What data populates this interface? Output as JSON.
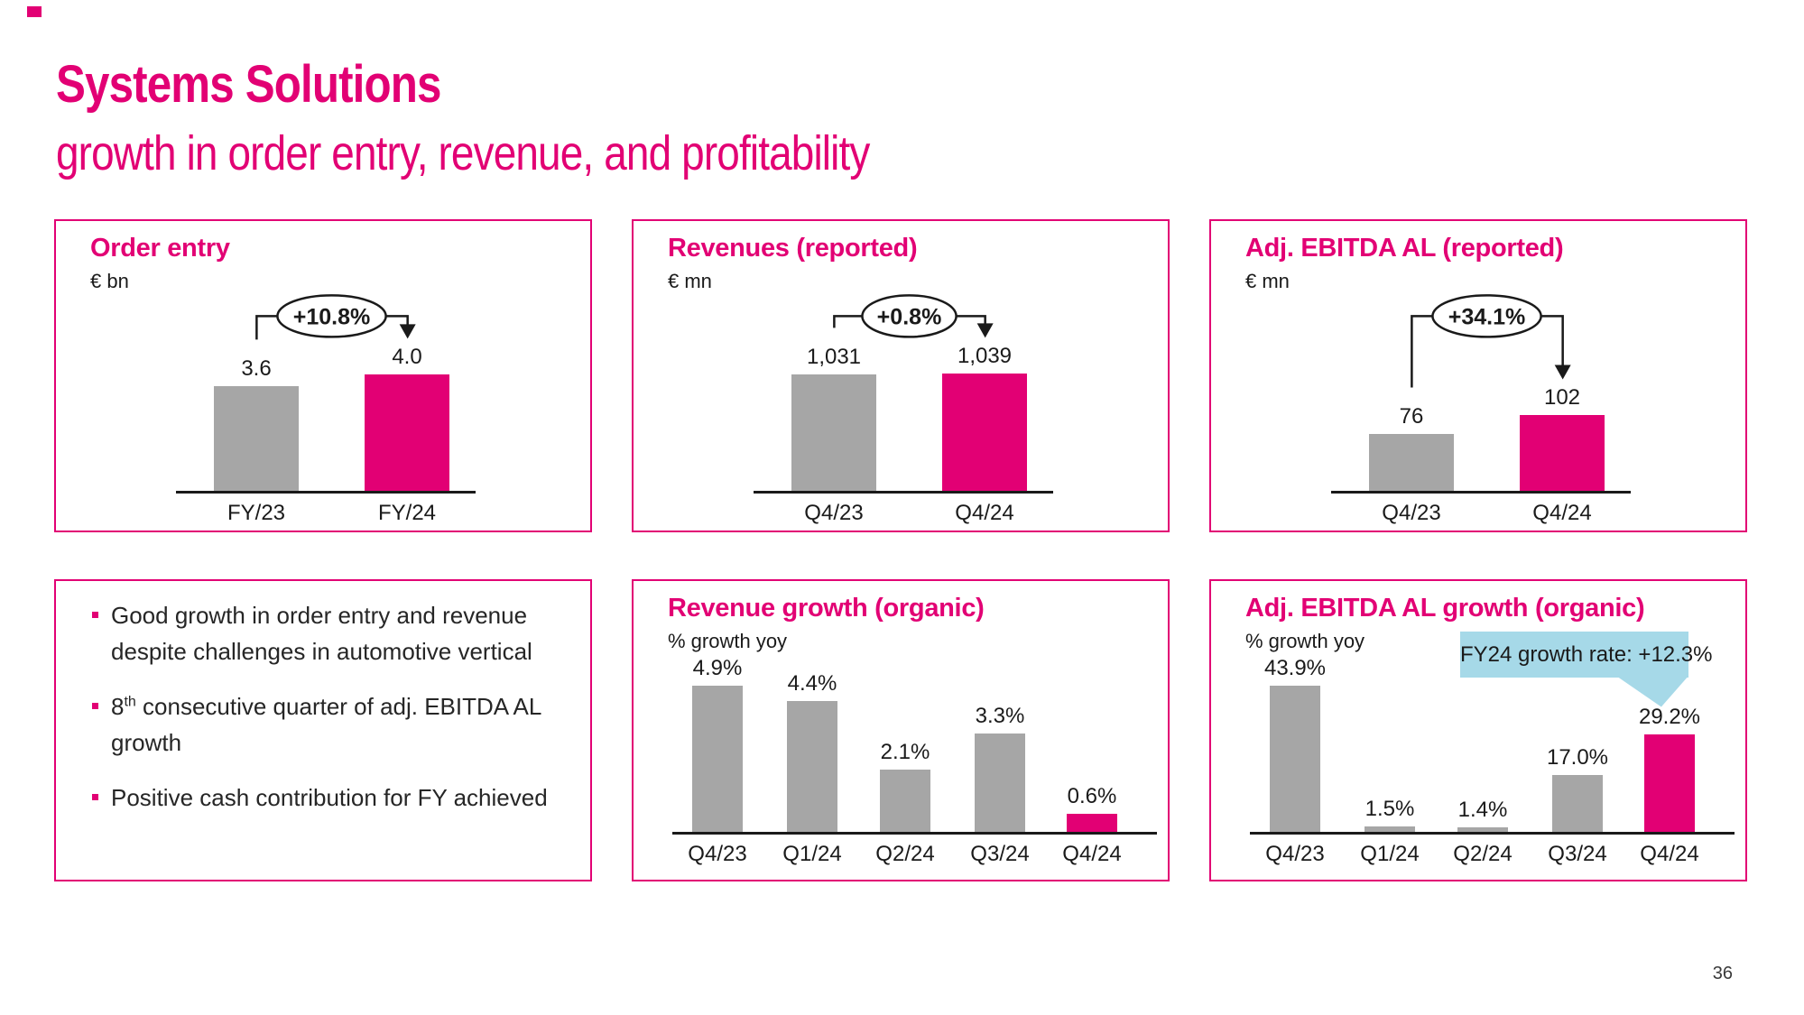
{
  "slide": {
    "title": "Systems Solutions",
    "subtitle": "growth in order entry, revenue, and profitability",
    "page_number": "36"
  },
  "colors": {
    "magenta": "#E20074",
    "gray_bar": "#A6A6A6",
    "callout_blue": "#A6D9E8",
    "axis": "#1A1A1A"
  },
  "bullets": [
    {
      "text": "Good growth in order entry and revenue\ndespite challenges in automotive vertical"
    },
    {
      "prefix": "8",
      "sup": "th",
      "text": " consecutive quarter of adj. EBITDA AL\ngrowth"
    },
    {
      "text": "Positive cash contribution for FY achieved"
    }
  ],
  "chart_data": [
    {
      "id": "order-entry",
      "type": "bar",
      "title": "Order entry",
      "unit": "€ bn",
      "categories": [
        "FY/23",
        "FY/24"
      ],
      "values": [
        3.6,
        4.0
      ],
      "value_labels": [
        "3.6",
        "4.0"
      ],
      "growth_label": "+10.8%",
      "highlight_index": 1,
      "grid": false,
      "legend": "none"
    },
    {
      "id": "revenues-reported",
      "type": "bar",
      "title": "Revenues (reported)",
      "unit": "€ mn",
      "categories": [
        "Q4/23",
        "Q4/24"
      ],
      "values": [
        1031,
        1039
      ],
      "value_labels": [
        "1,031",
        "1,039"
      ],
      "growth_label": "+0.8%",
      "highlight_index": 1,
      "grid": false,
      "legend": "none"
    },
    {
      "id": "adj-ebitda-reported",
      "type": "bar",
      "title": "Adj. EBITDA AL (reported)",
      "unit": "€ mn",
      "categories": [
        "Q4/23",
        "Q4/24"
      ],
      "values": [
        76,
        102
      ],
      "value_labels": [
        "76",
        "102"
      ],
      "growth_label": "+34.1%",
      "highlight_index": 1,
      "grid": false,
      "legend": "none"
    },
    {
      "id": "revenue-growth-organic",
      "type": "bar",
      "title": "Revenue growth (organic)",
      "unit": "% growth yoy",
      "categories": [
        "Q4/23",
        "Q1/24",
        "Q2/24",
        "Q3/24",
        "Q4/24"
      ],
      "values": [
        4.9,
        4.4,
        2.1,
        3.3,
        0.6
      ],
      "value_labels": [
        "4.9%",
        "4.4%",
        "2.1%",
        "3.3%",
        "0.6%"
      ],
      "highlight_index": 4,
      "grid": false,
      "legend": "none"
    },
    {
      "id": "adj-ebitda-growth-organic",
      "type": "bar",
      "title": "Adj. EBITDA AL growth (organic)",
      "unit": "% growth yoy",
      "categories": [
        "Q4/23",
        "Q1/24",
        "Q2/24",
        "Q3/24",
        "Q4/24"
      ],
      "values": [
        43.9,
        1.5,
        1.4,
        17.0,
        29.2
      ],
      "value_labels": [
        "43.9%",
        "1.5%",
        "1.4%",
        "17.0%",
        "29.2%"
      ],
      "highlight_index": 4,
      "callout": "FY24 growth rate: +12.3%",
      "grid": false,
      "legend": "none"
    }
  ]
}
